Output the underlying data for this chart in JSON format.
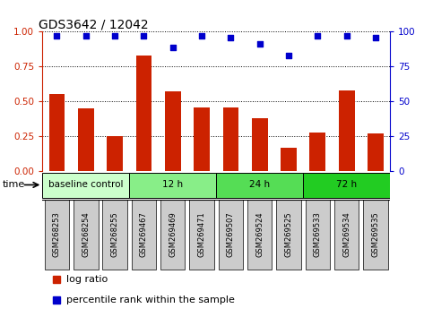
{
  "title": "GDS3642 / 12042",
  "samples": [
    "GSM268253",
    "GSM268254",
    "GSM268255",
    "GSM269467",
    "GSM269469",
    "GSM269471",
    "GSM269507",
    "GSM269524",
    "GSM269525",
    "GSM269533",
    "GSM269534",
    "GSM269535"
  ],
  "log_ratio": [
    0.55,
    0.45,
    0.25,
    0.83,
    0.57,
    0.46,
    0.46,
    0.38,
    0.17,
    0.28,
    0.58,
    0.27
  ],
  "percentile_rank": [
    97,
    97,
    97,
    97,
    89,
    97,
    96,
    91,
    83,
    97,
    97,
    96
  ],
  "groups": [
    {
      "label": "baseline control",
      "start": 0,
      "end": 3,
      "color": "#ccffcc"
    },
    {
      "label": "12 h",
      "start": 3,
      "end": 6,
      "color": "#88ee88"
    },
    {
      "label": "24 h",
      "start": 6,
      "end": 9,
      "color": "#55dd55"
    },
    {
      "label": "72 h",
      "start": 9,
      "end": 12,
      "color": "#22cc22"
    }
  ],
  "bar_color": "#cc2200",
  "dot_color": "#0000cc",
  "ylim_left": [
    0,
    1.0
  ],
  "ylim_right": [
    0,
    100
  ],
  "yticks_left": [
    0,
    0.25,
    0.5,
    0.75,
    1.0
  ],
  "yticks_right": [
    0,
    25,
    50,
    75,
    100
  ],
  "background_color": "#ffffff",
  "tick_bg_color": "#cccccc",
  "legend_bar_label": "log ratio",
  "legend_dot_label": "percentile rank within the sample",
  "time_label": "time"
}
